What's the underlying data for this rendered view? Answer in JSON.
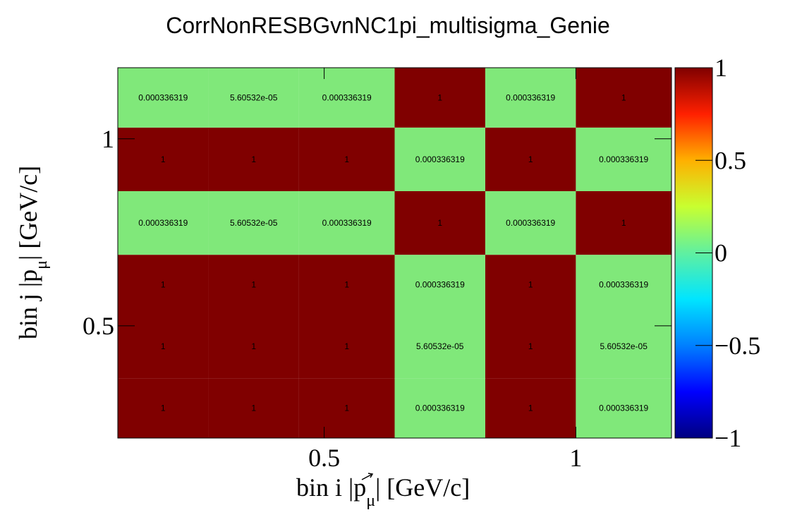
{
  "chart_data": {
    "type": "heatmap",
    "title": "CorrNonRESBGvnNC1pi_multisigma_Genie",
    "xlabel_main": "bin i |",
    "xlabel_var": "p",
    "xlabel_sub": "μ",
    "xlabel_unit": "| [GeV/c]",
    "ylabel_main": "bin j |",
    "ylabel_var": "p",
    "ylabel_sub": "μ",
    "ylabel_unit": "| [GeV/c]",
    "x_ticks": [
      {
        "value": 0.5,
        "label": "0.5"
      },
      {
        "value": 1,
        "label": "1"
      }
    ],
    "y_ticks": [
      {
        "value": 0.5,
        "label": "0.5"
      },
      {
        "value": 1,
        "label": "1"
      }
    ],
    "z_ticks": [
      {
        "value": 1,
        "label": "1"
      },
      {
        "value": 0.5,
        "label": "0.5"
      },
      {
        "value": 0,
        "label": "0"
      },
      {
        "value": -0.5,
        "label": "−0.5"
      },
      {
        "value": -1,
        "label": "−1"
      }
    ],
    "xlim": [
      0.09,
      1.19
    ],
    "ylim": [
      0.2,
      1.19
    ],
    "zlim": [
      -1,
      1
    ],
    "x_edges": [
      0.09,
      0.27,
      0.45,
      0.64,
      0.82,
      1.0,
      1.19
    ],
    "y_edges": [
      0.2,
      0.36,
      0.53,
      0.69,
      0.86,
      1.03,
      1.19
    ],
    "z": [
      [
        1,
        1,
        1,
        0.000336319,
        1,
        0.000336319
      ],
      [
        1,
        1,
        1,
        5.60532e-05,
        1,
        5.60532e-05
      ],
      [
        1,
        1,
        1,
        0.000336319,
        1,
        0.000336319
      ],
      [
        0.000336319,
        5.60532e-05,
        0.000336319,
        1,
        0.000336319,
        1
      ],
      [
        1,
        1,
        1,
        0.000336319,
        1,
        0.000336319
      ],
      [
        0.000336319,
        5.60532e-05,
        0.000336319,
        1,
        0.000336319,
        1
      ]
    ],
    "labels": [
      [
        "1",
        "1",
        "1",
        "0.000336319",
        "1",
        "0.000336319"
      ],
      [
        "1",
        "1",
        "1",
        "5.60532e-05",
        "1",
        "5.60532e-05"
      ],
      [
        "1",
        "1",
        "1",
        "0.000336319",
        "1",
        "0.000336319"
      ],
      [
        "0.000336319",
        "5.60532e-05",
        "0.000336319",
        "1",
        "0.000336319",
        "1"
      ],
      [
        "1",
        "1",
        "1",
        "0.000336319",
        "1",
        "0.000336319"
      ],
      [
        "0.000336319",
        "5.60532e-05",
        "0.000336319",
        "1",
        "0.000336319",
        "1"
      ]
    ],
    "colormap": "rainbow",
    "colors": {
      "high": "#800000",
      "zero": "#80e87a",
      "low": "#000080",
      "axis": "#000000"
    },
    "grid": false,
    "legend": "colorbar-right"
  }
}
